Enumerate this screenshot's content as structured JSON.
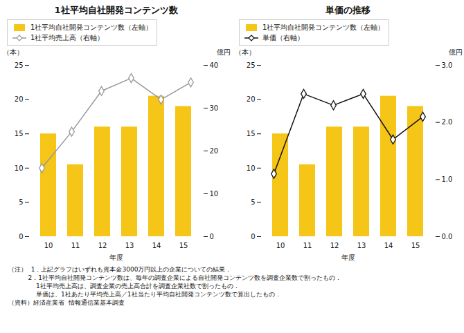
{
  "chart_data": [
    {
      "type": "bar",
      "title": "1社平均自社開発コンテンツ数",
      "categories": [
        "10",
        "11",
        "12",
        "13",
        "14",
        "15"
      ],
      "xlabel": "年度",
      "ylabel": "（本）",
      "y2label": "億円",
      "ylim": [
        0,
        25
      ],
      "yticks": [
        0,
        5,
        10,
        15,
        20,
        25
      ],
      "y2lim": [
        0,
        40
      ],
      "y2ticks": [
        0,
        10,
        20,
        30,
        40
      ],
      "grid": false,
      "legend": "upper left",
      "series": [
        {
          "name": "1社平均自社開発コンテンツ数（左軸）",
          "type": "bar",
          "color": "#F5C518",
          "values": [
            15,
            10.5,
            16,
            16,
            20.5,
            19
          ]
        },
        {
          "name": "1社平均売上高（右軸）",
          "type": "line",
          "axis": "y2",
          "color": "#999999",
          "marker": "diamond",
          "values": [
            16,
            24.5,
            34,
            37,
            32,
            36
          ]
        }
      ]
    },
    {
      "type": "bar",
      "title": "単価の推移",
      "categories": [
        "10",
        "11",
        "12",
        "13",
        "14",
        "15"
      ],
      "xlabel": "年度",
      "ylabel": "（本）",
      "y2label": "億円",
      "ylim": [
        0,
        25
      ],
      "yticks": [
        0,
        5,
        10,
        15,
        20,
        25
      ],
      "y2lim": [
        0,
        3
      ],
      "y2ticks": [
        0,
        1,
        2,
        3
      ],
      "grid": false,
      "legend": "upper left",
      "series": [
        {
          "name": "1社平均自社開発コンテンツ数（左軸）",
          "type": "bar",
          "color": "#F5C518",
          "values": [
            15,
            10.5,
            16,
            16,
            20.5,
            19
          ]
        },
        {
          "name": "単価（右軸）",
          "type": "line",
          "axis": "y2",
          "color": "#111111",
          "marker": "diamond",
          "values": [
            1.1,
            2.5,
            2.3,
            2.5,
            1.7,
            2.1
          ]
        }
      ]
    }
  ],
  "annotations": [
    "（注）  1．上記グラフはいずれも資本金3000万円以上の企業についての結果．",
    "          2．1社平均自社開発コンテンツ数は、毎年の調査企業による自社開発コンテンツ数を調査企業数で割ったもの．",
    "              1社平均売上高は、調査企業の売上高合計を調査企業社数で割ったもの．",
    "              単価は、1社あたり平均売上高／1社当たり平均自社開発コンテンツ数で算出したもの．",
    "（資料）経済産業省  情報通信業基本調査"
  ]
}
